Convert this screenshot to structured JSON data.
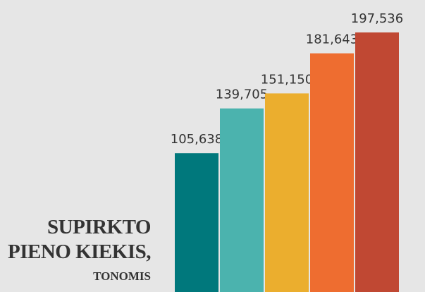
{
  "chart_data": {
    "type": "bar",
    "title": [
      "SUPIRKTO",
      "PIENO KIEKIS,"
    ],
    "subtitle": "TONOMIS",
    "values": [
      105638,
      139705,
      151150,
      181643,
      197536
    ],
    "value_labels": [
      "105,638",
      "139,705",
      "151,150",
      "181,643",
      "197,536"
    ],
    "colors": [
      "#00787c",
      "#4bb3ae",
      "#ebae2e",
      "#ee6d30",
      "#c04833"
    ]
  }
}
